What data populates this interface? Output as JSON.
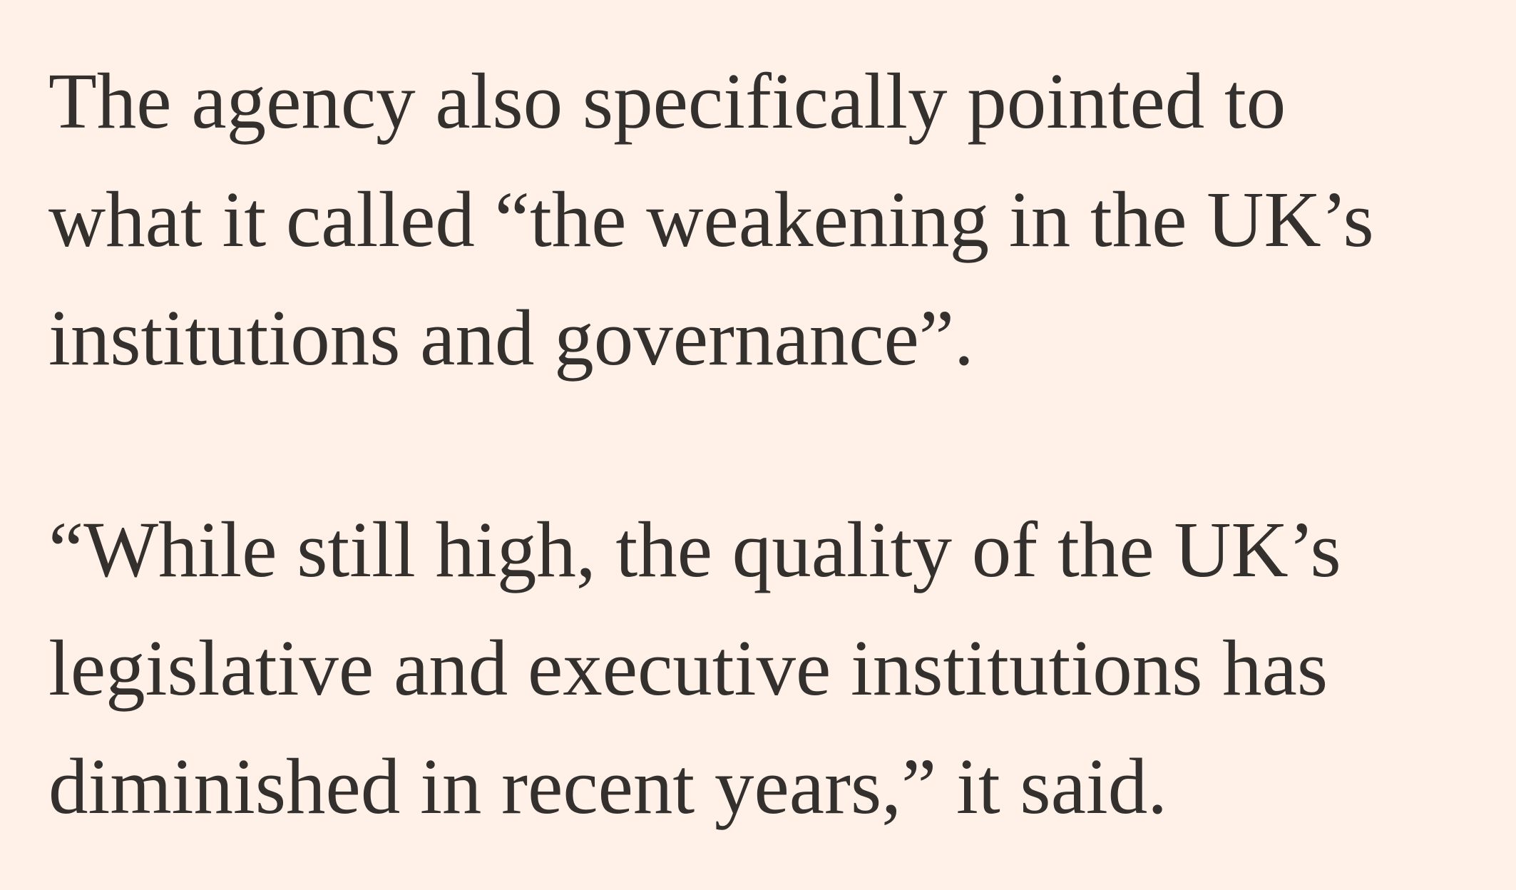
{
  "article": {
    "paragraphs": [
      {
        "lines": [
          "The agency also specifically pointed to",
          "what it called “the weakening in the UK’s",
          "institutions and governance”."
        ]
      },
      {
        "lines": [
          "“While still high, the quality of the UK’s",
          "legislative and executive institutions has",
          "diminished in recent years,” it said."
        ]
      }
    ],
    "colors": {
      "background": "#fff1e7",
      "text": "#33302e"
    }
  }
}
